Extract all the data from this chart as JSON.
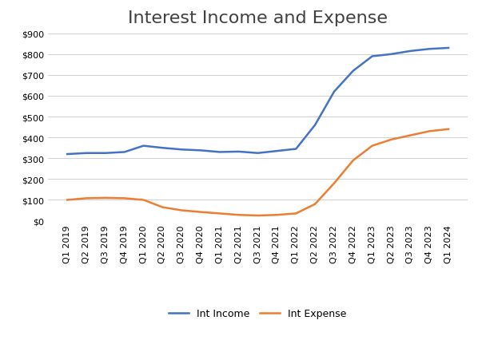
{
  "title": "Interest Income and Expense",
  "categories": [
    "Q1 2019",
    "Q2 2019",
    "Q3 2019",
    "Q4 2019",
    "Q1 2020",
    "Q2 2020",
    "Q3 2020",
    "Q4 2020",
    "Q1 2021",
    "Q2 2021",
    "Q3 2021",
    "Q4 2021",
    "Q1 2022",
    "Q2 2022",
    "Q3 2022",
    "Q4 2022",
    "Q1 2023",
    "Q2 2023",
    "Q3 2023",
    "Q4 2023",
    "Q1 2024"
  ],
  "int_income": [
    320,
    325,
    325,
    330,
    360,
    350,
    342,
    338,
    330,
    332,
    325,
    335,
    345,
    460,
    620,
    720,
    790,
    800,
    815,
    825,
    830
  ],
  "int_expense": [
    100,
    108,
    110,
    108,
    100,
    65,
    50,
    42,
    35,
    28,
    25,
    28,
    35,
    80,
    180,
    290,
    360,
    390,
    410,
    430,
    440
  ],
  "income_color": "#4472C4",
  "expense_color": "#ED7D31",
  "ylim": [
    0,
    900
  ],
  "yticks": [
    0,
    100,
    200,
    300,
    400,
    500,
    600,
    700,
    800,
    900
  ],
  "background_color": "#FFFFFF",
  "grid_color": "#D0D0D0",
  "legend_labels": [
    "Int Income",
    "Int Expense"
  ],
  "title_fontsize": 16,
  "tick_fontsize": 8,
  "legend_fontsize": 9,
  "line_width": 1.8
}
